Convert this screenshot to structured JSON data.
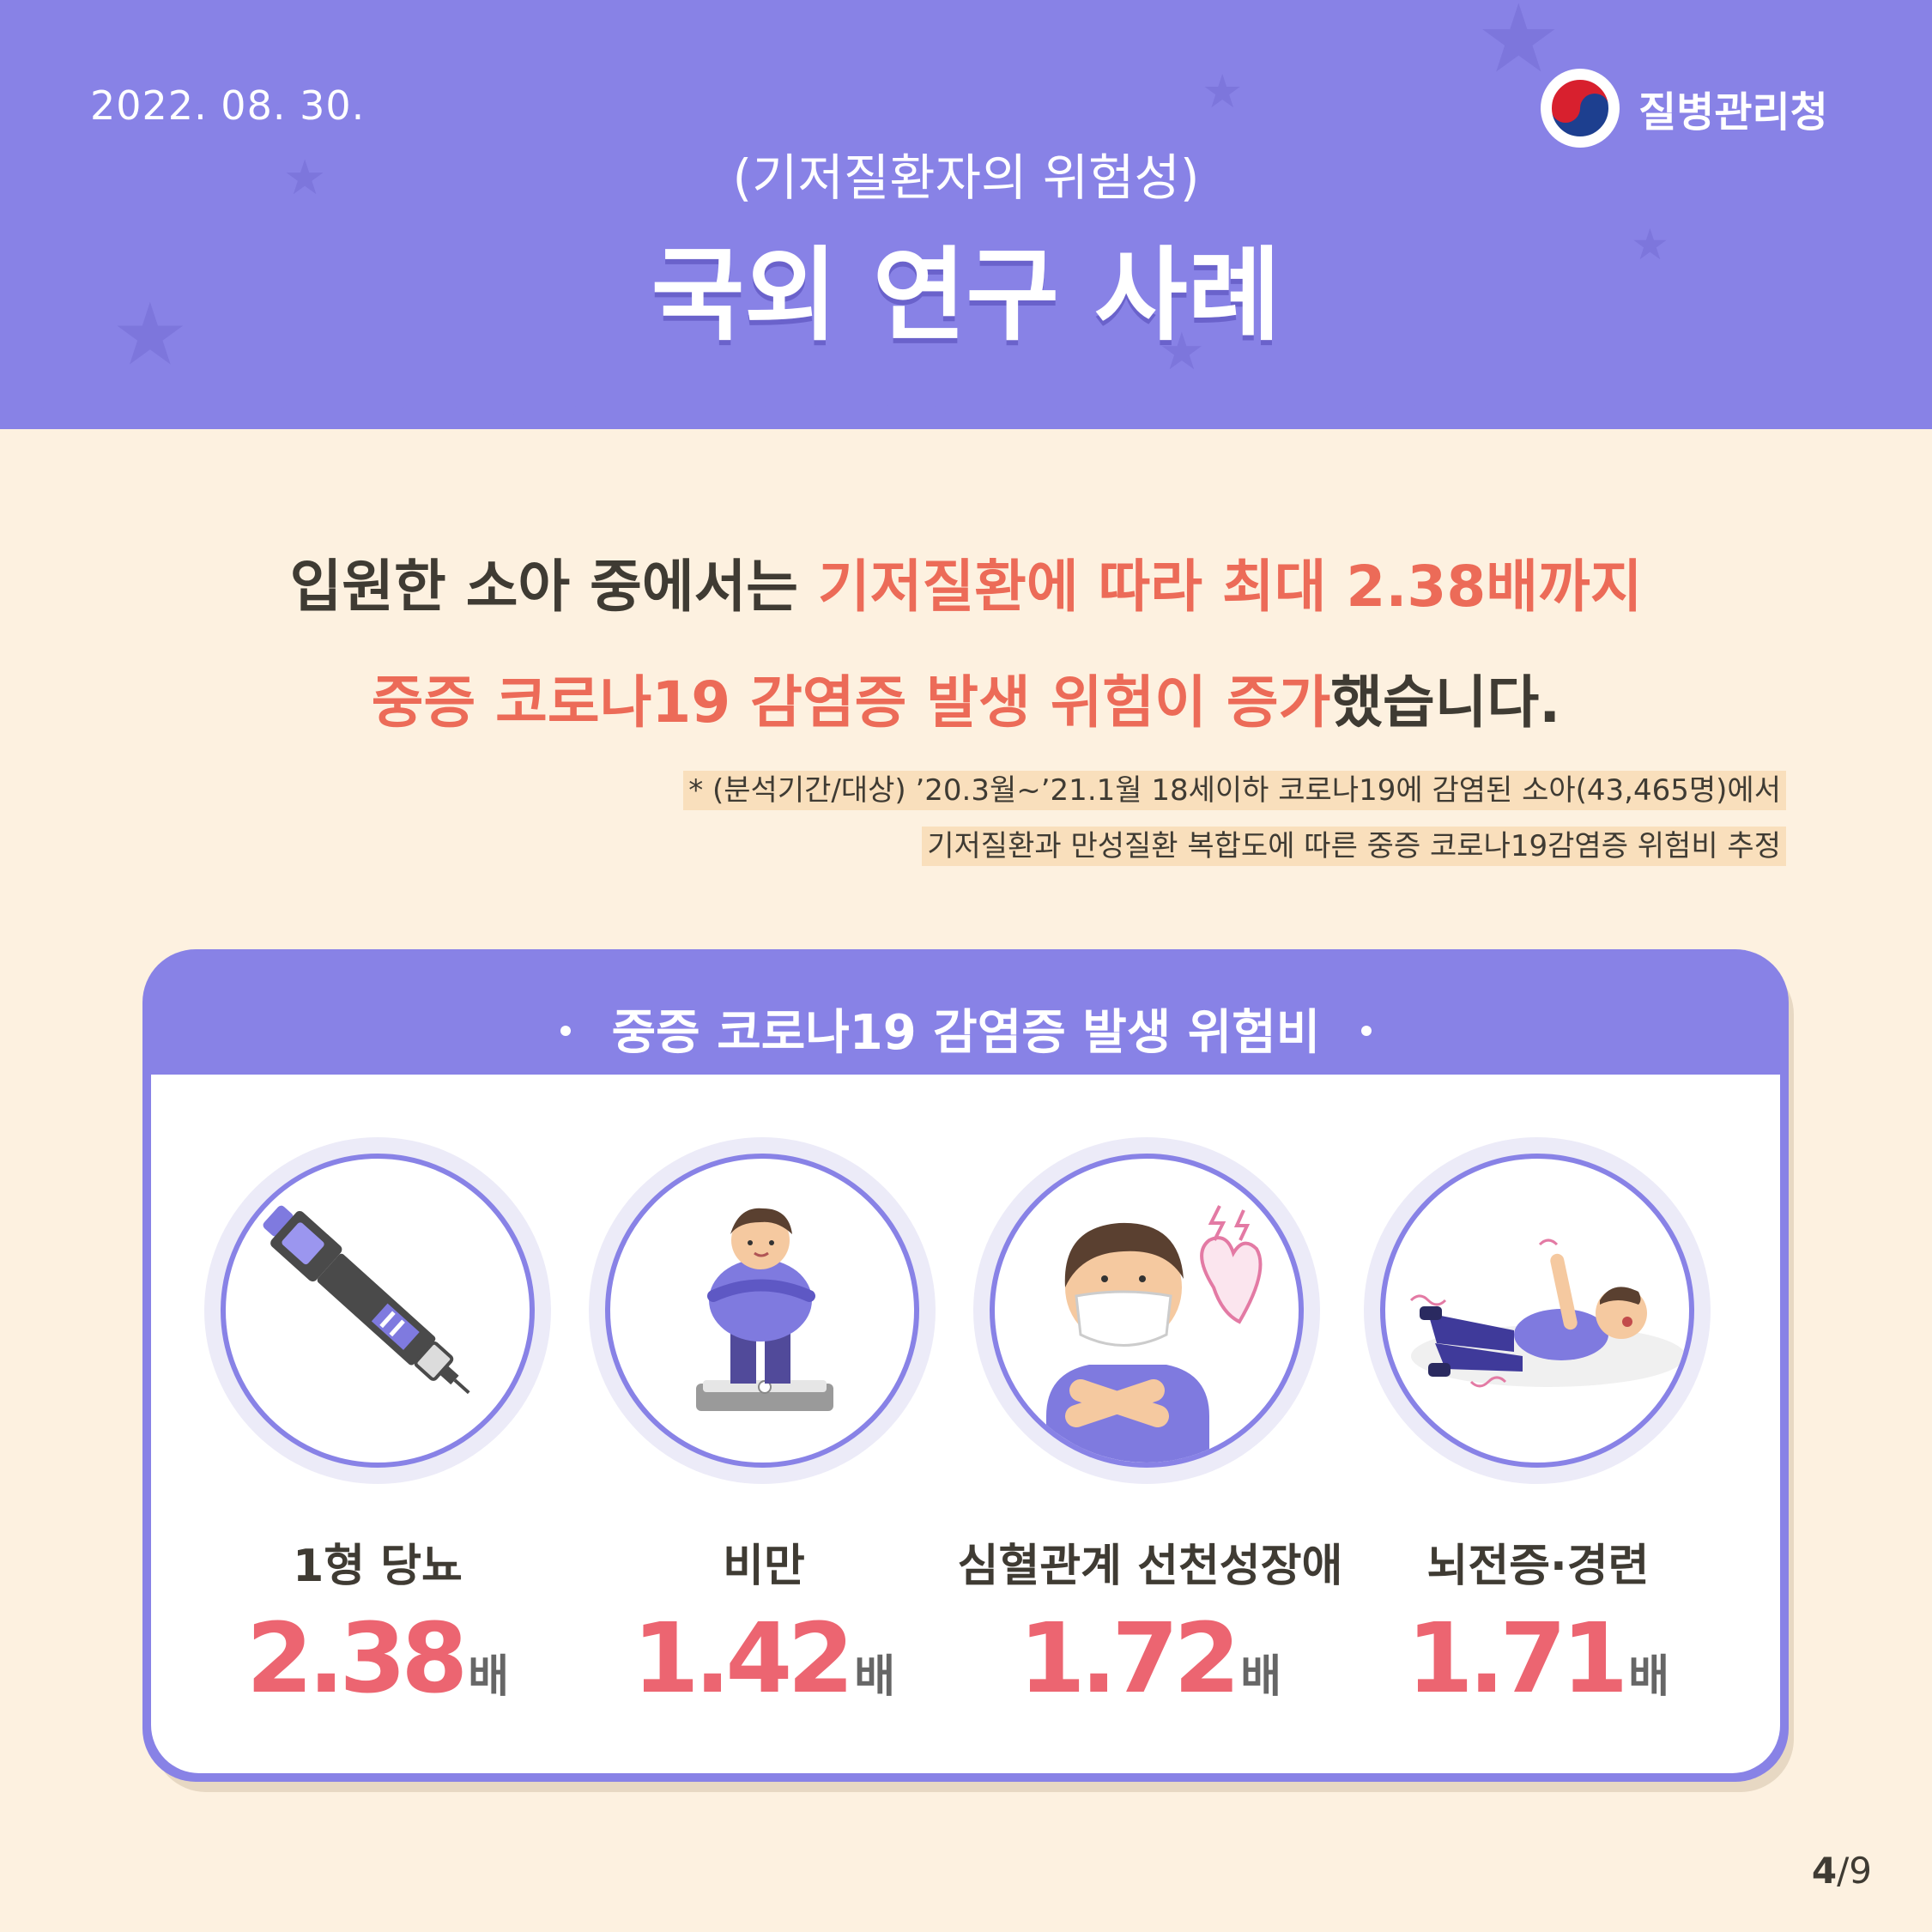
{
  "header": {
    "date": "2022. 08. 30.",
    "logo_text": "질병관리청",
    "subtitle": "(기저질환자의 위험성)",
    "title": "국외 연구 사례"
  },
  "headline": {
    "line1_plain": "입원한 소아 중에서는 ",
    "line1_highlight": "기저질환에 따라 최대 2.38배까지",
    "line2_highlight": "중증 코로나19 감염증 발생 위험이 증가",
    "line2_plain": "했습니다."
  },
  "footnote": {
    "line1": "* (분석기간/대상) ’20.3월~’21.1월 18세이하 코로나19에 감염된 소아(43,465명)에서",
    "line2": "기저질환과 만성질환 복합도에 따른 중증 코로나19감염증 위험비 추정"
  },
  "card": {
    "title": "중증 코로나19 감염증 발생 위험비",
    "items": [
      {
        "label": "1형 당뇨",
        "value": "2.38",
        "unit": "배",
        "icon": "insulin-pen-icon"
      },
      {
        "label": "비만",
        "value": "1.42",
        "unit": "배",
        "icon": "obese-child-scale-icon"
      },
      {
        "label": "심혈관계 선천성장애",
        "value": "1.72",
        "unit": "배",
        "icon": "heart-condition-icon"
      },
      {
        "label": "뇌전증·경련",
        "value": "1.71",
        "unit": "배",
        "icon": "seizure-icon"
      }
    ]
  },
  "page": {
    "current": "4",
    "total": "/9"
  },
  "colors": {
    "header_purple": "#8882e6",
    "background_cream": "#fdf1e0",
    "highlight_orange": "#ec6b58",
    "value_pink": "#ec6571",
    "text_dark": "#3f3b33"
  }
}
